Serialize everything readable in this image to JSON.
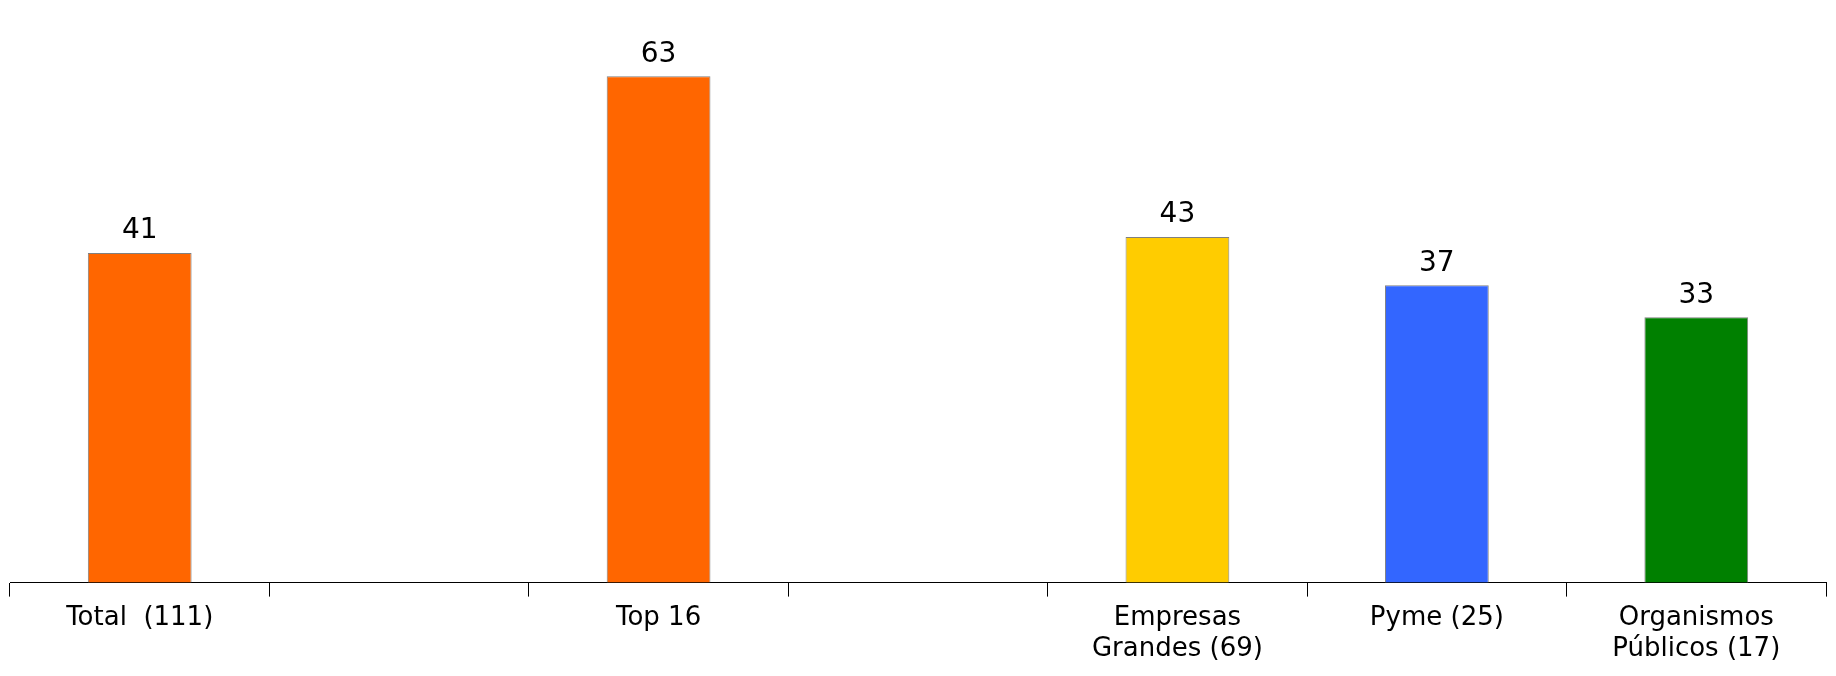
{
  "chart_data": {
    "type": "bar",
    "categories": [
      "Total  (111)",
      null,
      "Top 16",
      null,
      "Empresas Grandes (69)",
      "Pyme (25)",
      "Organismos Públicos (17)"
    ],
    "values": [
      41,
      null,
      63,
      null,
      43,
      37,
      33
    ],
    "colors": [
      "#ff6600",
      "#ff6600",
      "#ff6600",
      "#ff6600",
      "#ffcc00",
      "#3366ff",
      "#008000"
    ],
    "data_labels": true,
    "grid": false,
    "legend": false,
    "tick_labels": "x"
  }
}
